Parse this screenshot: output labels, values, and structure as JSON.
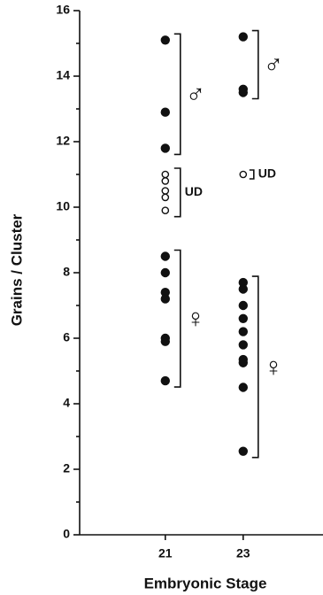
{
  "chart_data": {
    "type": "scatter",
    "xlabel": "Embryonic Stage",
    "ylabel": "Grains / Cluster",
    "xlim": [
      18.8,
      25.05
    ],
    "xticks": [
      21,
      23
    ],
    "ylim": [
      0,
      16
    ],
    "yticks": [
      0,
      2,
      4,
      6,
      8,
      10,
      12,
      14,
      16
    ],
    "yminorticks": [
      1,
      3,
      5,
      7,
      9,
      11,
      13,
      15
    ],
    "color": "#111111",
    "series": [
      {
        "name": "♂",
        "x": 21,
        "filled": true,
        "values": [
          15.1,
          12.9,
          11.8
        ]
      },
      {
        "name": "UD",
        "x": 21,
        "filled": false,
        "values": [
          11.0,
          10.8,
          10.5,
          10.3,
          9.9
        ]
      },
      {
        "name": "♀",
        "x": 21,
        "filled": true,
        "values": [
          8.5,
          8.0,
          7.4,
          7.2,
          6.0,
          5.9,
          4.7
        ]
      },
      {
        "name": "♂",
        "x": 23,
        "filled": true,
        "values": [
          15.2,
          13.6,
          13.5
        ]
      },
      {
        "name": "UD",
        "x": 23,
        "filled": false,
        "values": [
          11.0
        ]
      },
      {
        "name": "♀",
        "x": 23,
        "filled": true,
        "values": [
          7.7,
          7.5,
          7.0,
          6.6,
          6.2,
          5.8,
          5.35,
          5.25,
          4.5,
          2.55
        ]
      }
    ]
  }
}
